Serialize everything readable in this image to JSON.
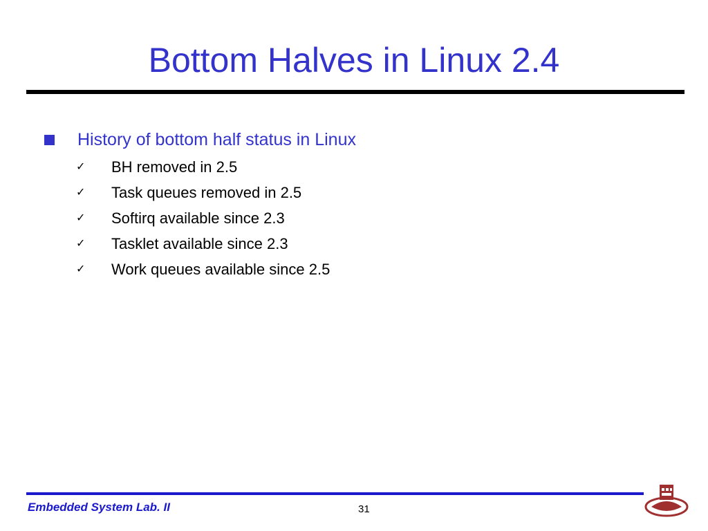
{
  "title": "Bottom Halves in Linux 2.4",
  "main": {
    "bullet": "History of bottom half status in Linux",
    "items": [
      "BH removed in 2.5",
      "Task queues removed in 2.5",
      "Softirq available since 2.3",
      "Tasklet available since 2.3",
      "Work queues available since 2.5"
    ],
    "check": "✓"
  },
  "footer": {
    "lab": "Embedded System Lab. II",
    "page": "31"
  },
  "colors": {
    "accent": "#3333cc",
    "logo": "#a03030"
  }
}
